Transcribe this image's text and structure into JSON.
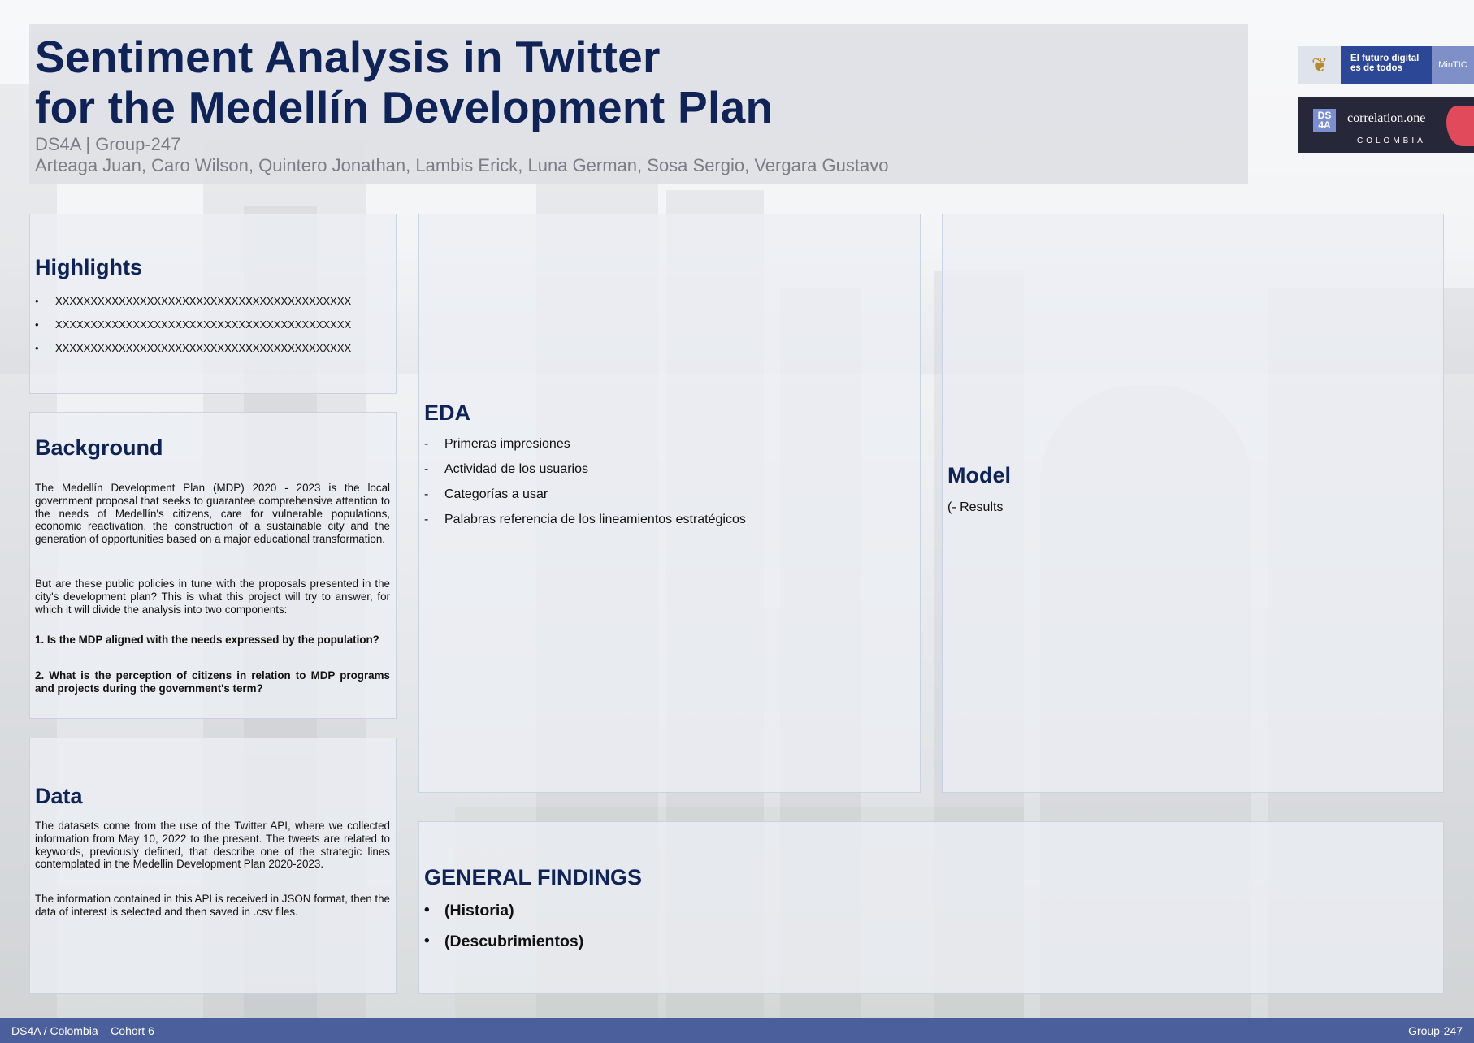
{
  "title": {
    "line1": "Sentiment Analysis in Twitter",
    "line2": "for the Medellín Development Plan",
    "subtitle": "DS4A | Group-247",
    "authors": "Arteaga Juan, Caro Wilson, Quintero Jonathan, Lambis Erick, Luna German, Sosa Sergio, Vergara Gustavo"
  },
  "logos": {
    "mintic_text": "El futuro digital es de todos",
    "mintic_tag": "MinTIC",
    "ds4a_badge": "DS 4A",
    "correlation_text": "correlation.one",
    "country": "COLOMBIA"
  },
  "highlights": {
    "title": "Highlights",
    "items": [
      "XXXXXXXXXXXXXXXXXXXXXXXXXXXXXXXXXXXXXXXXXX",
      "XXXXXXXXXXXXXXXXXXXXXXXXXXXXXXXXXXXXXXXXXX",
      "XXXXXXXXXXXXXXXXXXXXXXXXXXXXXXXXXXXXXXXXXX"
    ]
  },
  "background": {
    "title": "Background",
    "p1": "The Medellín Development Plan (MDP) 2020 - 2023 is the local government proposal that seeks to guarantee comprehensive attention to the needs of Medellín's citizens, care for vulnerable populations, economic reactivation, the construction of a sustainable city and the generation of opportunities based on a major educational transformation.",
    "p2": "But are these public policies in tune with the proposals presented in the city's development plan? This is what this project will try to answer, for which it will divide the analysis into two components:",
    "q1": "1. Is the MDP aligned with the needs expressed by the population?",
    "q2": "2. What is the perception of citizens in relation to MDP programs and projects during the government's term?"
  },
  "data_section": {
    "title": "Data",
    "p1": "The datasets come from the use of the Twitter API, where we collected information from May 10, 2022 to the present. The tweets are related to keywords, previously defined, that describe one of the strategic lines contemplated in the Medellin Development Plan 2020-2023.",
    "p2": "The information contained in this API is received in JSON format, then the data of interest is selected and then saved in .csv files."
  },
  "eda": {
    "title": "EDA",
    "marker": "-",
    "items": [
      "Primeras impresiones",
      "Actividad de los usuarios",
      "Categorías a usar",
      "Palabras referencia de los lineamientos estratégicos"
    ]
  },
  "model": {
    "title": "Model",
    "text": "(- Results"
  },
  "findings": {
    "title": "GENERAL FINDINGS",
    "marker": "•",
    "items": [
      "(Historia)",
      "(Descubrimientos)"
    ]
  },
  "footer": {
    "left": "DS4A / Colombia – Cohort 6",
    "right": "Group-247"
  },
  "colors": {
    "title": "#0f2357",
    "footer": "#4a5f9c",
    "muted": "#7b7e86"
  }
}
